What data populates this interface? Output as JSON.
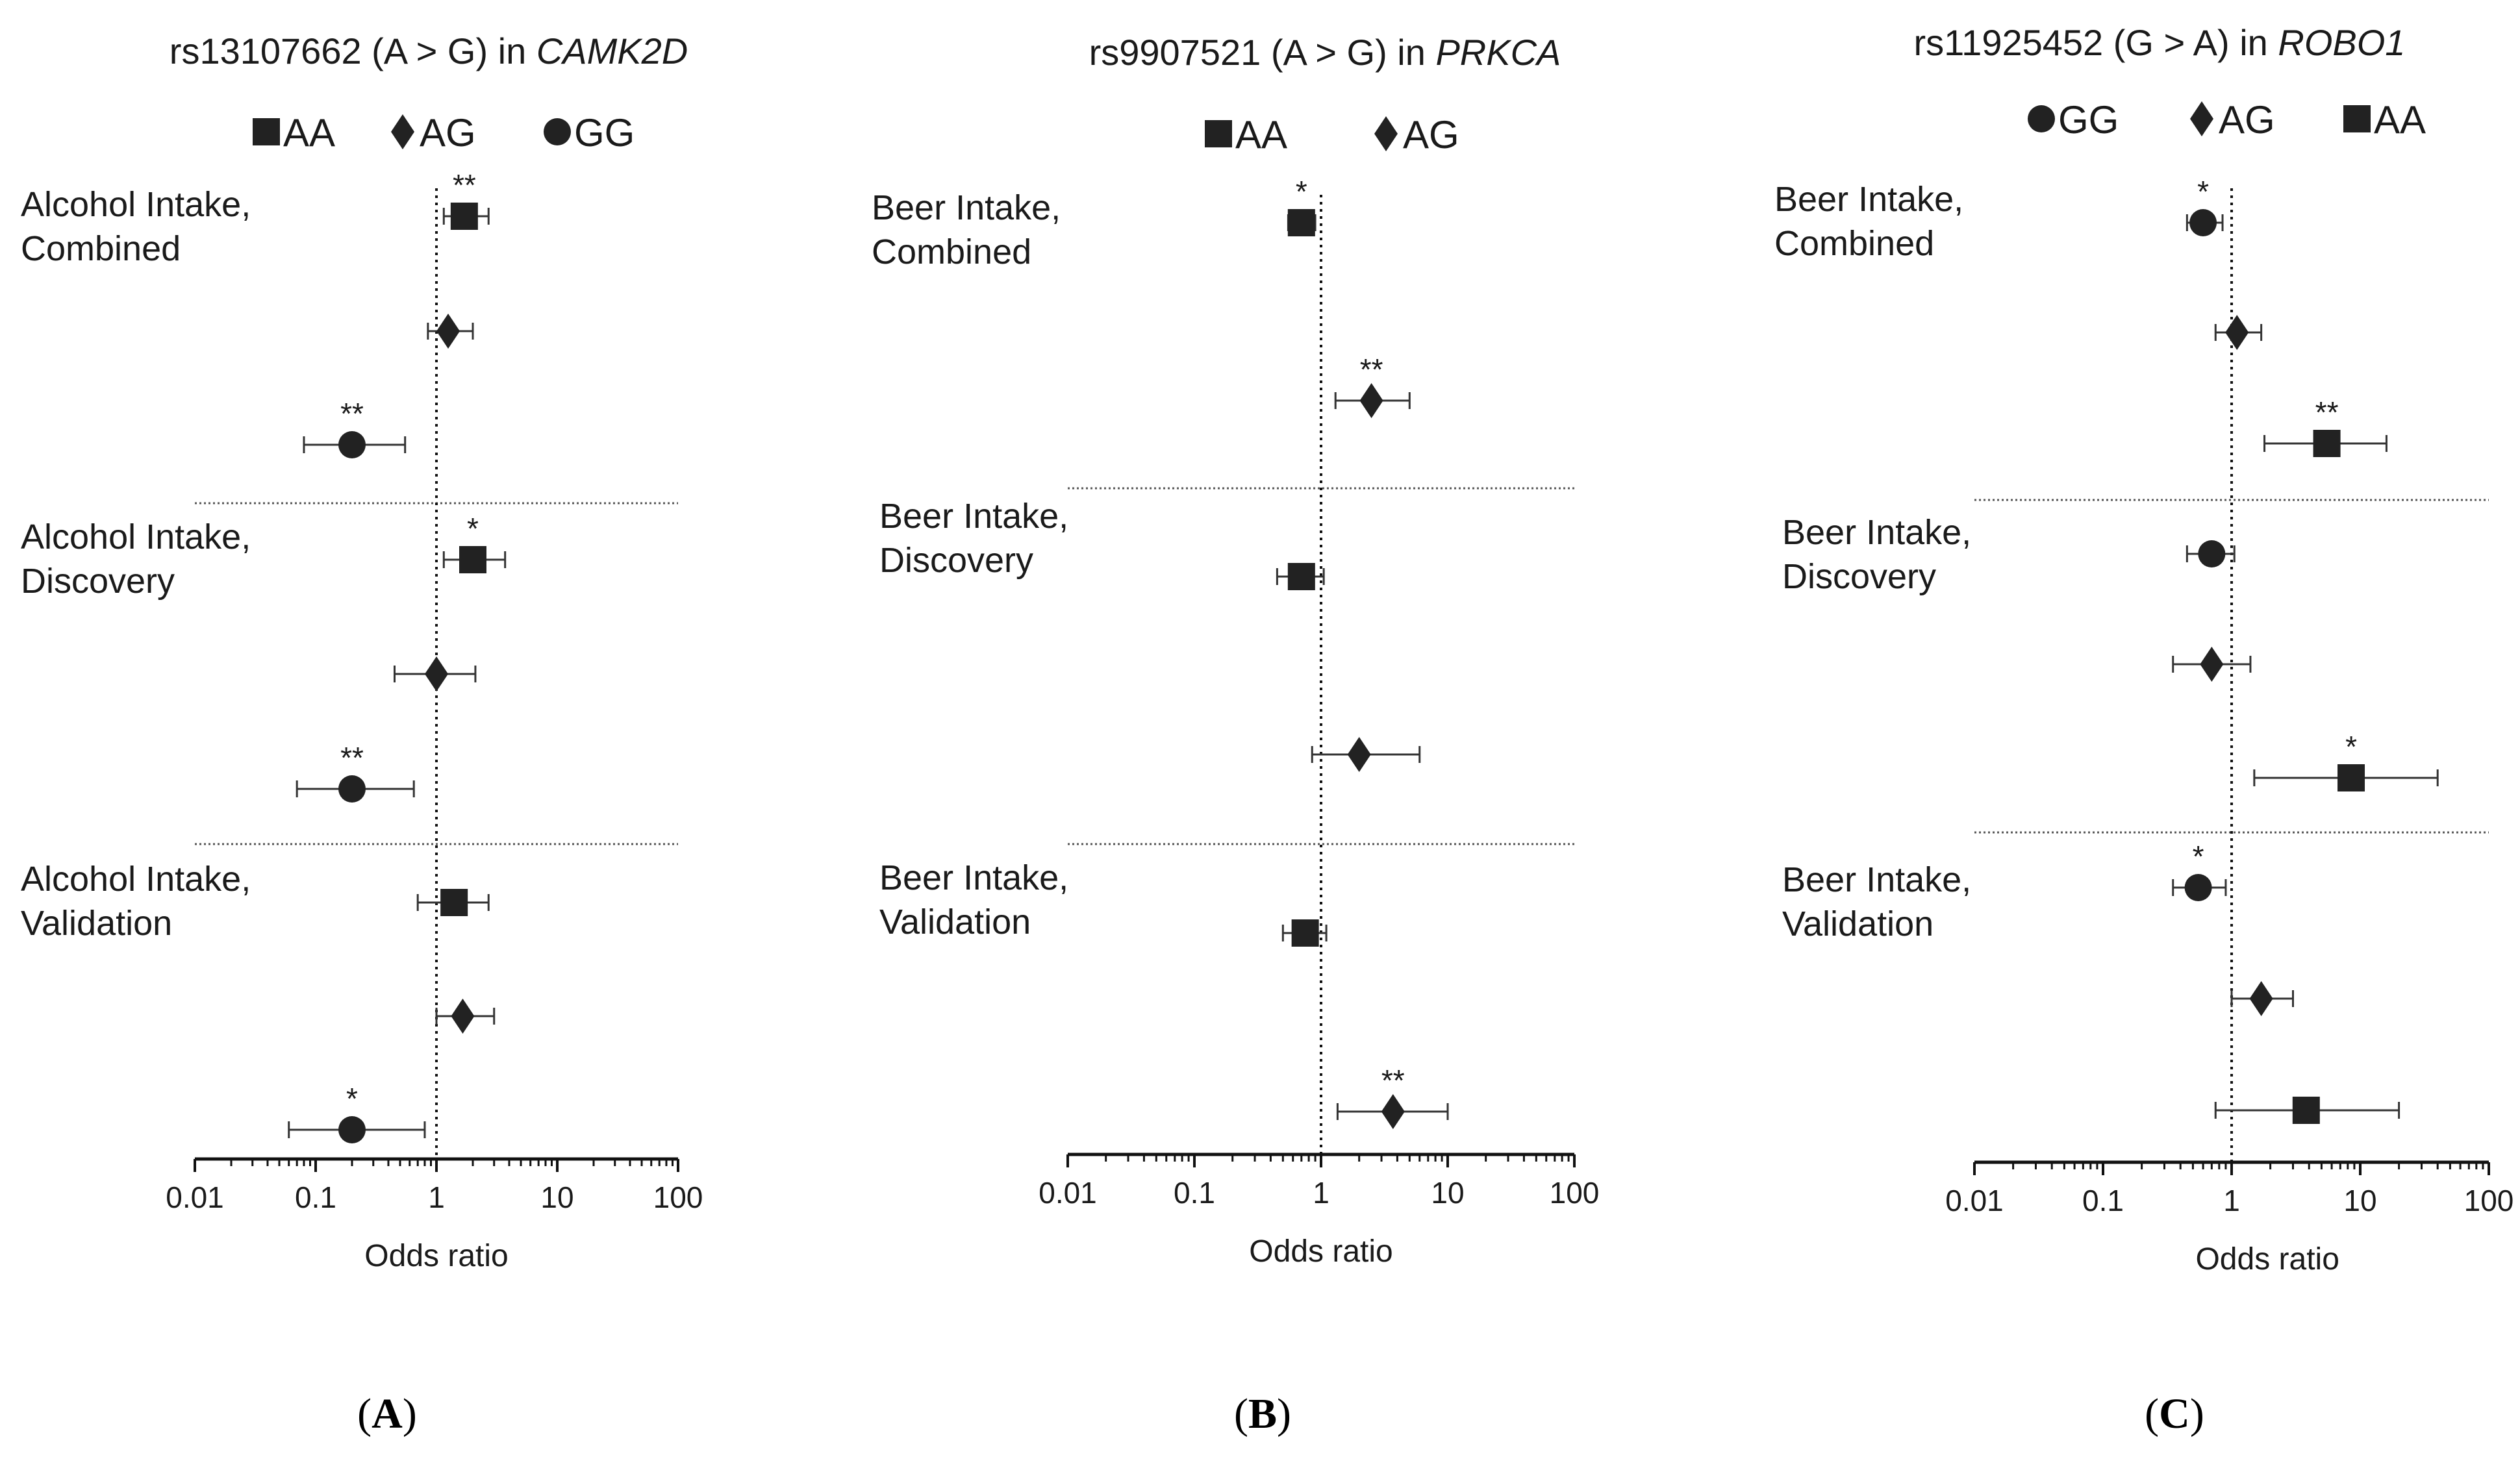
{
  "figure": {
    "panel_labels": [
      "A",
      "B",
      "C"
    ],
    "marker_colors": {
      "fill": "#222222",
      "axis": "#111111",
      "divider": "#555555"
    },
    "marker_icons": {
      "AA": "square-icon",
      "AG": "diamond-icon",
      "GG": "circle-icon"
    }
  },
  "chart_data": [
    {
      "type": "forest",
      "title_prefix": "rs13107662 (A > G) in ",
      "title_gene": "CAMK2D",
      "legend": [
        "AA",
        "AG",
        "GG"
      ],
      "xlabel": "Odds ratio",
      "x_scale": "log",
      "xlim": [
        0.01,
        100
      ],
      "x_ticks": [
        "0.01",
        "0.1",
        "1",
        "10",
        "100"
      ],
      "reference_line": 1,
      "groups": [
        {
          "label_lines": [
            "Alcohol Intake,",
            "Combined"
          ],
          "rows": [
            {
              "genotype": "AA",
              "or": 1.7,
              "ci": [
                1.15,
                2.7
              ],
              "sig": "**"
            },
            {
              "genotype": "AG",
              "or": 1.25,
              "ci": [
                0.85,
                2.0
              ],
              "sig": ""
            },
            {
              "genotype": "GG",
              "or": 0.2,
              "ci": [
                0.08,
                0.55
              ],
              "sig": "**"
            }
          ]
        },
        {
          "label_lines": [
            "Alcohol Intake,",
            "Discovery"
          ],
          "rows": [
            {
              "genotype": "AA",
              "or": 2.0,
              "ci": [
                1.15,
                3.7
              ],
              "sig": "*"
            },
            {
              "genotype": "AG",
              "or": 1.0,
              "ci": [
                0.45,
                2.1
              ],
              "sig": ""
            },
            {
              "genotype": "GG",
              "or": 0.2,
              "ci": [
                0.07,
                0.65
              ],
              "sig": "**"
            }
          ]
        },
        {
          "label_lines": [
            "Alcohol Intake,",
            "Validation"
          ],
          "rows": [
            {
              "genotype": "AA",
              "or": 1.4,
              "ci": [
                0.7,
                2.7
              ],
              "sig": ""
            },
            {
              "genotype": "AG",
              "or": 1.65,
              "ci": [
                1.0,
                3.0
              ],
              "sig": ""
            },
            {
              "genotype": "GG",
              "or": 0.2,
              "ci": [
                0.06,
                0.8
              ],
              "sig": "*"
            }
          ]
        }
      ]
    },
    {
      "type": "forest",
      "title_prefix": "rs9907521 (A > G) in ",
      "title_gene": "PRKCA",
      "legend": [
        "AA",
        "AG"
      ],
      "xlabel": "Odds ratio",
      "x_scale": "log",
      "xlim": [
        0.01,
        100
      ],
      "x_ticks": [
        "0.01",
        "0.1",
        "1",
        "10",
        "100"
      ],
      "reference_line": 1,
      "groups": [
        {
          "label_lines": [
            "Beer Intake,",
            "Combined"
          ],
          "rows": [
            {
              "genotype": "AA",
              "or": 0.7,
              "ci": [
                0.55,
                0.9
              ],
              "sig": "*"
            },
            {
              "genotype": "AG",
              "or": 2.5,
              "ci": [
                1.3,
                5.0
              ],
              "sig": "**"
            }
          ]
        },
        {
          "label_lines": [
            "Beer Intake,",
            "Discovery"
          ],
          "rows": [
            {
              "genotype": "AA",
              "or": 0.7,
              "ci": [
                0.45,
                1.05
              ],
              "sig": ""
            },
            {
              "genotype": "AG",
              "or": 2.0,
              "ci": [
                0.85,
                6.0
              ],
              "sig": ""
            }
          ]
        },
        {
          "label_lines": [
            "Beer Intake,",
            "Validation"
          ],
          "rows": [
            {
              "genotype": "AA",
              "or": 0.75,
              "ci": [
                0.5,
                1.1
              ],
              "sig": ""
            },
            {
              "genotype": "AG",
              "or": 3.7,
              "ci": [
                1.35,
                10.0
              ],
              "sig": "**"
            }
          ]
        }
      ]
    },
    {
      "type": "forest",
      "title_prefix": "rs11925452 (G > A) in ",
      "title_gene": "ROBO1",
      "legend": [
        "GG",
        "AG",
        "AA"
      ],
      "xlabel": "Odds ratio",
      "x_scale": "log",
      "xlim": [
        0.01,
        100
      ],
      "x_ticks": [
        "0.01",
        "0.1",
        "1",
        "10",
        "100"
      ],
      "reference_line": 1,
      "groups": [
        {
          "label_lines": [
            "Beer Intake,",
            "Combined"
          ],
          "rows": [
            {
              "genotype": "GG",
              "or": 0.6,
              "ci": [
                0.45,
                0.85
              ],
              "sig": "*"
            },
            {
              "genotype": "AG",
              "or": 1.1,
              "ci": [
                0.75,
                1.7
              ],
              "sig": ""
            },
            {
              "genotype": "AA",
              "or": 5.5,
              "ci": [
                1.8,
                16.0
              ],
              "sig": "**"
            }
          ]
        },
        {
          "label_lines": [
            "Beer Intake,",
            "Discovery"
          ],
          "rows": [
            {
              "genotype": "GG",
              "or": 0.7,
              "ci": [
                0.45,
                1.05
              ],
              "sig": ""
            },
            {
              "genotype": "AG",
              "or": 0.7,
              "ci": [
                0.35,
                1.4
              ],
              "sig": ""
            },
            {
              "genotype": "AA",
              "or": 8.5,
              "ci": [
                1.5,
                40.0
              ],
              "sig": "*"
            }
          ]
        },
        {
          "label_lines": [
            "Beer Intake,",
            "Validation"
          ],
          "rows": [
            {
              "genotype": "GG",
              "or": 0.55,
              "ci": [
                0.35,
                0.9
              ],
              "sig": "*"
            },
            {
              "genotype": "AG",
              "or": 1.7,
              "ci": [
                1.0,
                3.0
              ],
              "sig": ""
            },
            {
              "genotype": "AA",
              "or": 3.8,
              "ci": [
                0.75,
                20.0
              ],
              "sig": ""
            }
          ]
        }
      ]
    }
  ]
}
